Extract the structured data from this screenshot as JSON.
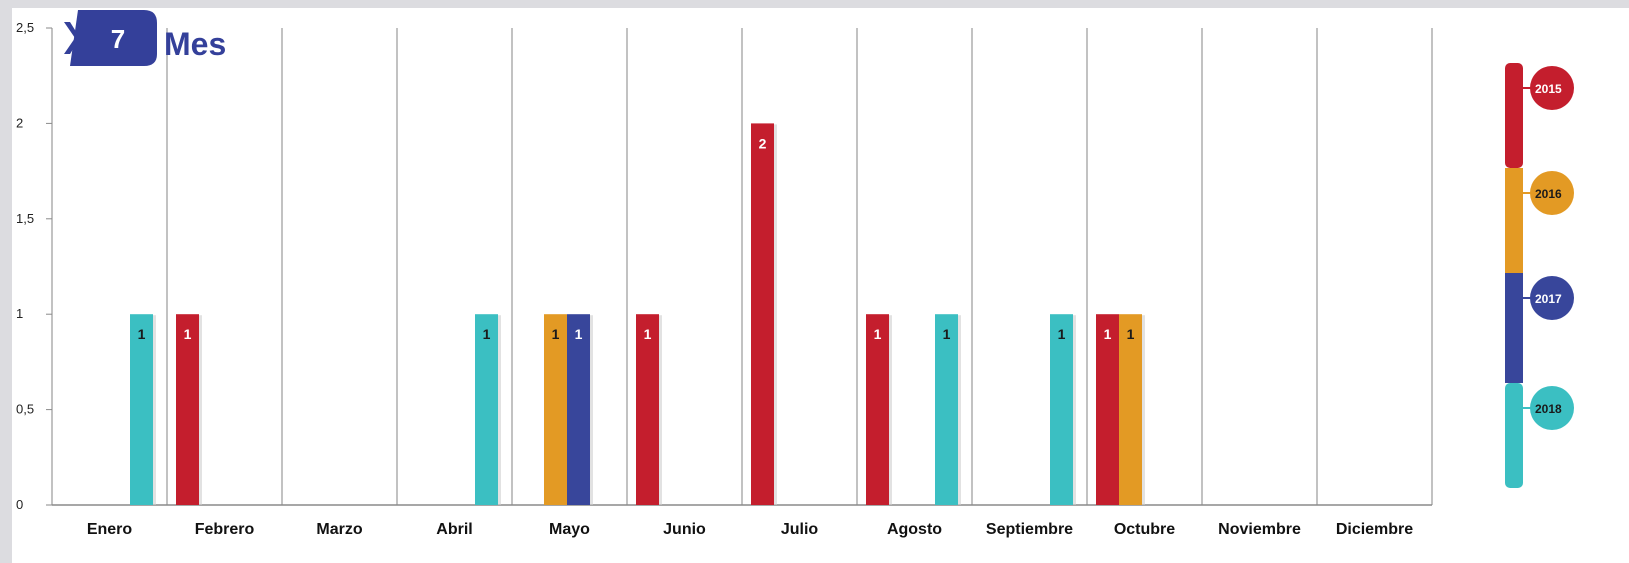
{
  "badge": {
    "number": "7",
    "label": "Mes"
  },
  "chart_data": {
    "type": "bar",
    "categories": [
      "Enero",
      "Febrero",
      "Marzo",
      "Abril",
      "Mayo",
      "Junio",
      "Julio",
      "Agosto",
      "Septiembre",
      "Octubre",
      "Noviembre",
      "Diciembre"
    ],
    "ylim": [
      0,
      2.5
    ],
    "yticks": [
      "0",
      "0,5",
      "1",
      "1,5",
      "2",
      "2,5"
    ],
    "grid": "vertical",
    "legend_position": "right",
    "series": [
      {
        "name": "2015",
        "color": "#c41e2d",
        "label_color": "#ffffff",
        "values": [
          0,
          1,
          0,
          0,
          0,
          1,
          2,
          1,
          0,
          1,
          0,
          0
        ]
      },
      {
        "name": "2016",
        "color": "#e39a24",
        "label_color": "#1a1a1a",
        "values": [
          0,
          0,
          0,
          0,
          1,
          0,
          0,
          0,
          0,
          1,
          0,
          0
        ]
      },
      {
        "name": "2017",
        "color": "#38469b",
        "label_color": "#ffffff",
        "values": [
          0,
          0,
          0,
          0,
          1,
          0,
          0,
          0,
          0,
          0,
          0,
          0
        ]
      },
      {
        "name": "2018",
        "color": "#3bbfc2",
        "label_color": "#1a1a1a",
        "values": [
          1,
          0,
          0,
          1,
          0,
          0,
          0,
          1,
          1,
          0,
          0,
          0
        ]
      }
    ]
  }
}
